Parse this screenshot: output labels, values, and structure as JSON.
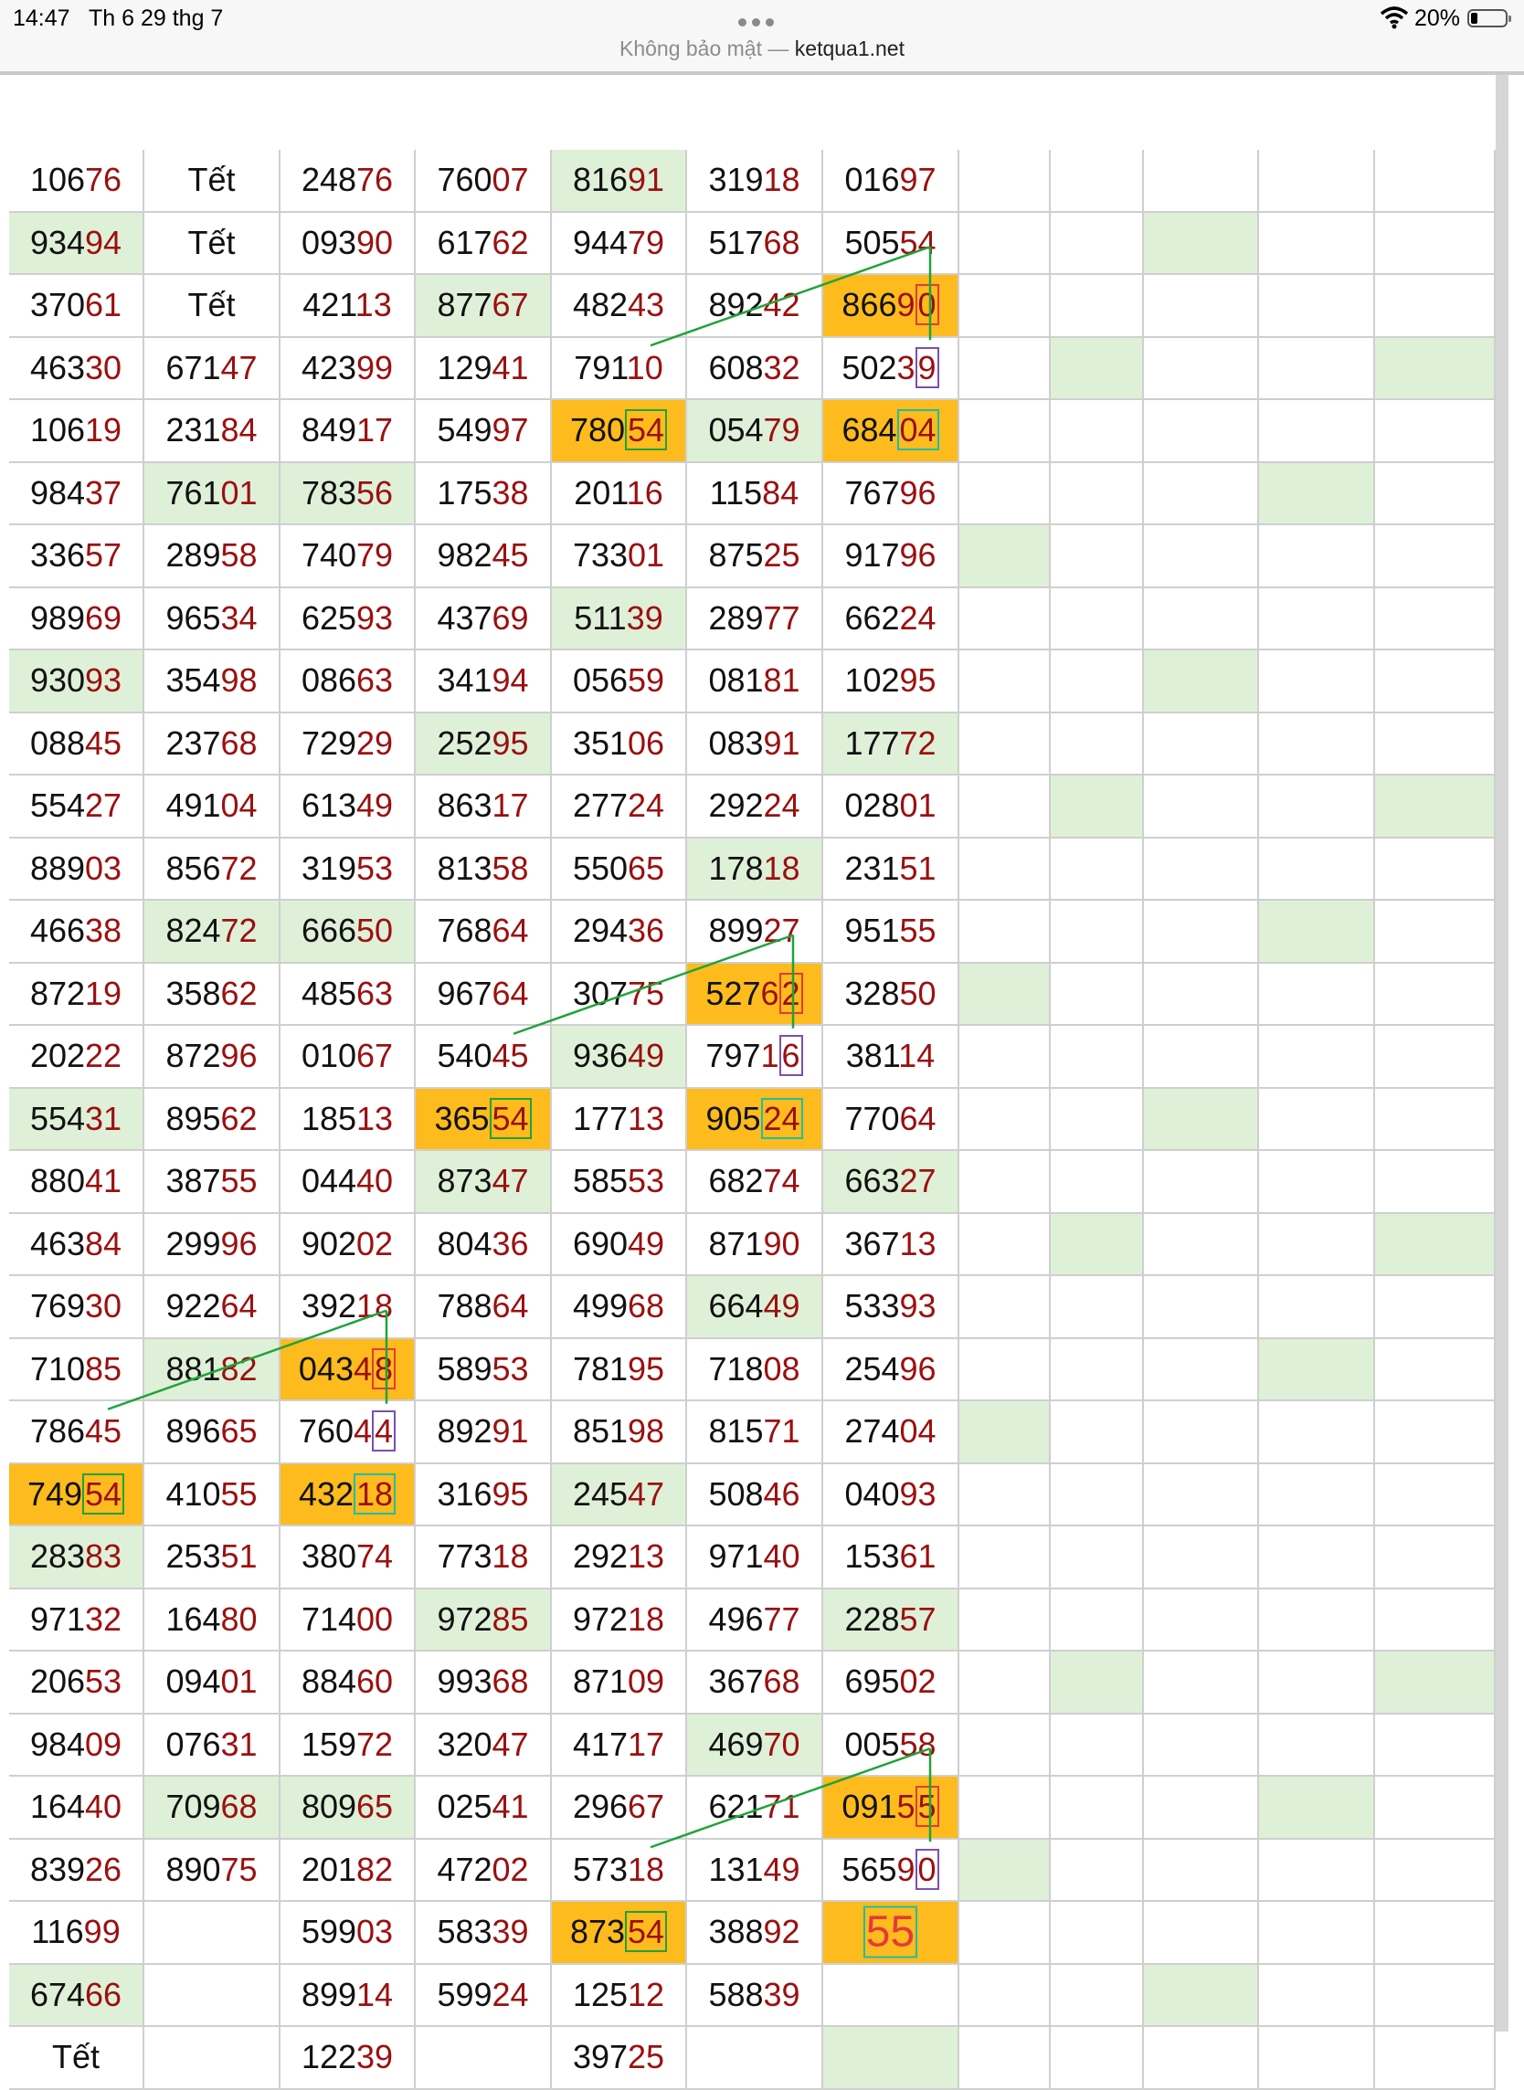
{
  "status_bar": {
    "time": "14:47",
    "date": "Th 6 29 thg 7",
    "security_label": "Không bảo mật —",
    "domain": "ketqua1.net",
    "battery": "20%"
  },
  "colors": {
    "highlight_green": "#dff0d8",
    "highlight_orange": "#fdbb1d",
    "digit_red": "#9b1010",
    "box_red": "#e53a3a",
    "box_purple": "#7c4fb3",
    "box_teal": "#1dbfa6",
    "connector_green": "#20a33a"
  },
  "icons": [
    "more-dots-icon",
    "wifi-icon",
    "battery-icon"
  ],
  "table": {
    "columns": [
      [
        "10676",
        "93494",
        "37061",
        "46330",
        "10619",
        "98437",
        "33657",
        "98969",
        "93093",
        "08845",
        "55427",
        "88903",
        "46638",
        "87219",
        "20222",
        "55431",
        "88041",
        "46384",
        "76930",
        "71085",
        "78645",
        "74954",
        "28383",
        "97132",
        "20653",
        "98409",
        "16440",
        "83926",
        "11699",
        "67466",
        "Tết"
      ],
      [
        "Tết",
        "Tết",
        "Tết",
        "67147",
        "23184",
        "76101",
        "28958",
        "96534",
        "35498",
        "23768",
        "49104",
        "85672",
        "82472",
        "35862",
        "87296",
        "89562",
        "38755",
        "29996",
        "92264",
        "88182",
        "89665",
        "41055",
        "25351",
        "16480",
        "09401",
        "07631",
        "70968",
        "89075",
        "",
        "",
        ""
      ],
      [
        "24876",
        "09390",
        "42113",
        "42399",
        "84917",
        "78356",
        "74079",
        "62593",
        "08663",
        "72929",
        "61349",
        "31953",
        "66650",
        "48563",
        "01067",
        "18513",
        "04440",
        "90202",
        "39218",
        "04348",
        "76044",
        "43218",
        "38074",
        "71400",
        "88460",
        "15972",
        "80965",
        "20182",
        "59903",
        "89914",
        "12239"
      ],
      [
        "76007",
        "61762",
        "87767",
        "12941",
        "54997",
        "17538",
        "98245",
        "43769",
        "34194",
        "25295",
        "86317",
        "81358",
        "76864",
        "96764",
        "54045",
        "36554",
        "87347",
        "80436",
        "78864",
        "58953",
        "89291",
        "31695",
        "77318",
        "97285",
        "99368",
        "32047",
        "02541",
        "47202",
        "58339",
        "59924",
        ""
      ],
      [
        "81691",
        "94479",
        "48243",
        "79110",
        "78054",
        "20116",
        "73301",
        "51139",
        "05659",
        "35106",
        "27724",
        "55065",
        "29436",
        "30775",
        "93649",
        "17713",
        "58553",
        "69049",
        "49968",
        "78195",
        "85198",
        "24547",
        "29213",
        "97218",
        "87109",
        "41717",
        "29667",
        "57318",
        "87354",
        "12512",
        "39725"
      ],
      [
        "31918",
        "51768",
        "89242",
        "60832",
        "05479",
        "11584",
        "87525",
        "28977",
        "08181",
        "08391",
        "29224",
        "17818",
        "89927",
        "52762",
        "79716",
        "90524",
        "68274",
        "87190",
        "66449",
        "71808",
        "81571",
        "50846",
        "97140",
        "49677",
        "36768",
        "46970",
        "62171",
        "13149",
        "38892",
        "58839",
        ""
      ],
      [
        "01697",
        "50554",
        "86690",
        "50239",
        "68404",
        "76796",
        "91796",
        "66224",
        "10295",
        "17772",
        "02801",
        "23151",
        "95155",
        "32850",
        "38114",
        "77064",
        "66327",
        "36713",
        "53393",
        "25496",
        "27404",
        "04093",
        "15361",
        "22857",
        "69502",
        "00558",
        "09155",
        "56590",
        "55",
        "",
        ""
      ]
    ]
  }
}
